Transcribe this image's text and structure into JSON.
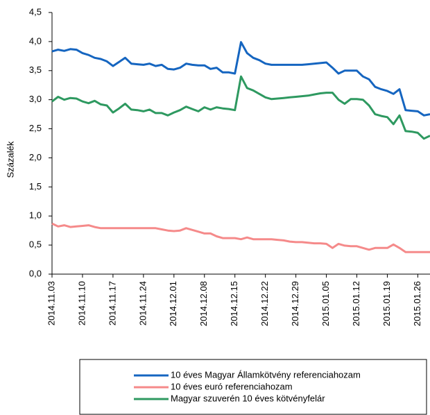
{
  "chart_data": {
    "type": "line",
    "y_label": "Százalék",
    "categories": [
      "2014.11.03",
      null,
      null,
      null,
      null,
      "2014.11.10",
      null,
      null,
      null,
      null,
      "2014.11.17",
      null,
      null,
      null,
      null,
      "2014.11.24",
      null,
      null,
      null,
      null,
      "2014.12.01",
      null,
      null,
      null,
      null,
      "2014.12.08",
      null,
      null,
      null,
      null,
      "2014.12.15",
      null,
      null,
      null,
      null,
      "2014.12.22",
      null,
      null,
      null,
      null,
      "2014.12.29",
      null,
      null,
      null,
      null,
      "2015.01.05",
      null,
      null,
      null,
      null,
      "2015.01.12",
      null,
      null,
      null,
      null,
      "2015.01.19",
      null,
      null,
      null,
      null,
      "2015.01.26",
      null,
      null
    ],
    "series": [
      {
        "name": "10 éves Magyar Államkötvény referenciahozam",
        "color": "#1565c0",
        "values": [
          3.83,
          3.86,
          3.84,
          3.87,
          3.86,
          3.8,
          3.77,
          3.72,
          3.7,
          3.66,
          3.58,
          3.65,
          3.72,
          3.62,
          3.61,
          3.6,
          3.62,
          3.58,
          3.6,
          3.53,
          3.52,
          3.55,
          3.62,
          3.6,
          3.59,
          3.59,
          3.53,
          3.55,
          3.47,
          3.47,
          3.45,
          3.99,
          3.8,
          3.72,
          3.68,
          3.62,
          3.6,
          3.6,
          3.6,
          3.6,
          3.6,
          3.6,
          3.61,
          3.62,
          3.63,
          3.64,
          3.55,
          3.45,
          3.5,
          3.5,
          3.5,
          3.4,
          3.35,
          3.22,
          3.18,
          3.15,
          3.1,
          3.18,
          2.82,
          2.81,
          2.8,
          2.73,
          2.75
        ]
      },
      {
        "name": "10 éves euró referenciahozam",
        "color": "#f58a8a",
        "values": [
          0.87,
          0.82,
          0.84,
          0.81,
          0.82,
          0.83,
          0.84,
          0.81,
          0.79,
          0.79,
          0.79,
          0.79,
          0.79,
          0.79,
          0.79,
          0.79,
          0.79,
          0.79,
          0.77,
          0.75,
          0.74,
          0.75,
          0.79,
          0.76,
          0.73,
          0.7,
          0.7,
          0.65,
          0.62,
          0.62,
          0.62,
          0.6,
          0.63,
          0.6,
          0.6,
          0.6,
          0.6,
          0.59,
          0.58,
          0.56,
          0.55,
          0.55,
          0.54,
          0.53,
          0.53,
          0.52,
          0.45,
          0.52,
          0.49,
          0.48,
          0.48,
          0.45,
          0.42,
          0.45,
          0.45,
          0.45,
          0.51,
          0.45,
          0.38,
          0.38,
          0.38,
          0.38,
          0.38
        ]
      },
      {
        "name": "Magyar szuverén 10 éves kötvényfelár",
        "color": "#2e9960",
        "values": [
          2.97,
          3.05,
          3.0,
          3.03,
          3.02,
          2.97,
          2.94,
          2.98,
          2.92,
          2.9,
          2.78,
          2.85,
          2.93,
          2.83,
          2.82,
          2.8,
          2.83,
          2.77,
          2.77,
          2.73,
          2.78,
          2.82,
          2.88,
          2.84,
          2.8,
          2.87,
          2.83,
          2.87,
          2.85,
          2.84,
          2.82,
          3.4,
          3.2,
          3.16,
          3.1,
          3.04,
          3.01,
          3.02,
          3.03,
          3.04,
          3.05,
          3.06,
          3.07,
          3.09,
          3.11,
          3.12,
          3.12,
          3.0,
          2.93,
          3.01,
          3.01,
          3.0,
          2.9,
          2.75,
          2.72,
          2.7,
          2.58,
          2.73,
          2.46,
          2.45,
          2.43,
          2.33,
          2.38
        ]
      }
    ],
    "ylim": [
      0,
      4.5
    ],
    "yticks": [
      {
        "value": 0,
        "label": "0,0"
      },
      {
        "value": 0.5,
        "label": "0,5"
      },
      {
        "value": 1,
        "label": "1,0"
      },
      {
        "value": 1.5,
        "label": "1,5"
      },
      {
        "value": 2,
        "label": "2,0"
      },
      {
        "value": 2.5,
        "label": "2,5"
      },
      {
        "value": 3,
        "label": "3,0"
      },
      {
        "value": 3.5,
        "label": "3,5"
      },
      {
        "value": 4,
        "label": "4,0"
      },
      {
        "value": 4.5,
        "label": "4,5"
      }
    ],
    "grid": false,
    "legend": "bottom"
  }
}
